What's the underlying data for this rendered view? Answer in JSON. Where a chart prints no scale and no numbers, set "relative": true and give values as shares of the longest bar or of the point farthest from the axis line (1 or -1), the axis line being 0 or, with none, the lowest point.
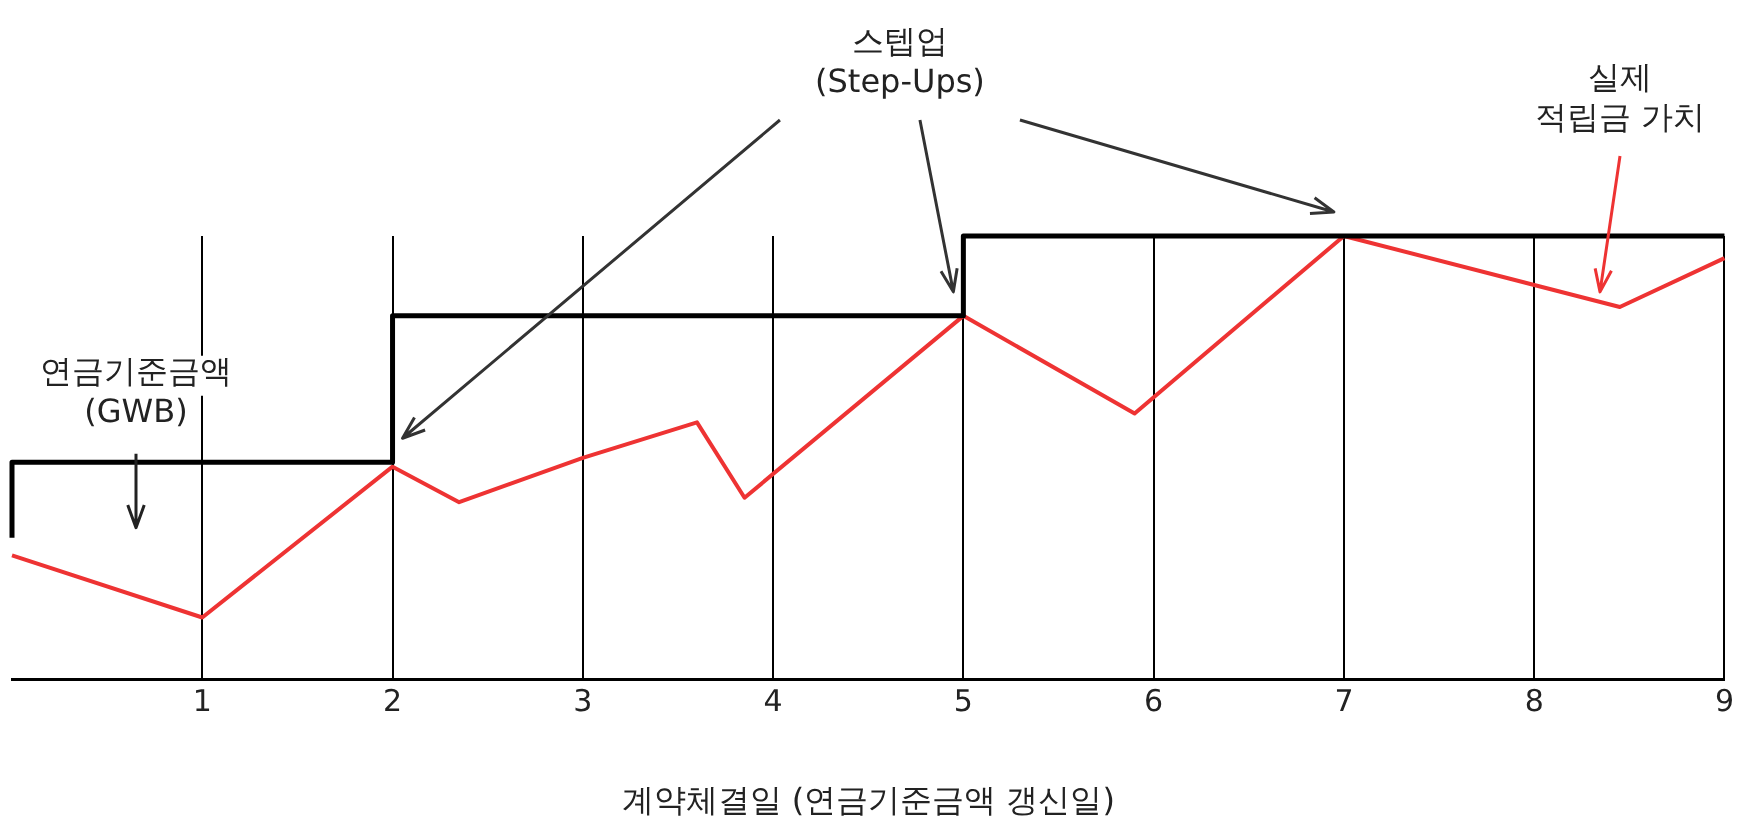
{
  "chart_data": {
    "type": "line",
    "relative": true,
    "xlabel": "계약체결일 (연금기준금액 갱신일)",
    "xlim": [
      0,
      9
    ],
    "xticks": [
      1,
      2,
      3,
      4,
      5,
      6,
      7,
      8,
      9
    ],
    "tick_labels": "x",
    "grid": "x",
    "legend": false,
    "marker": "none",
    "series": [
      {
        "type": "step",
        "color": "#000000",
        "x": [
          0,
          2,
          5,
          7,
          9
        ],
        "values": [
          0.32,
          0.49,
          0.82,
          1.0,
          1.0
        ]
      },
      {
        "type": "line",
        "color": "#ee3333",
        "x": [
          0,
          1,
          2,
          2.35,
          3,
          3.6,
          3.85,
          5,
          5.9,
          7,
          8.45,
          9
        ],
        "values": [
          0.28,
          0.14,
          0.48,
          0.4,
          0.5,
          0.58,
          0.41,
          0.82,
          0.6,
          1.0,
          0.84,
          0.95
        ]
      }
    ],
    "annotations": [
      "연금기준금액\n(GWB)",
      "스텝업\n(Step-Ups)",
      "실제\n적립금 가치"
    ]
  }
}
